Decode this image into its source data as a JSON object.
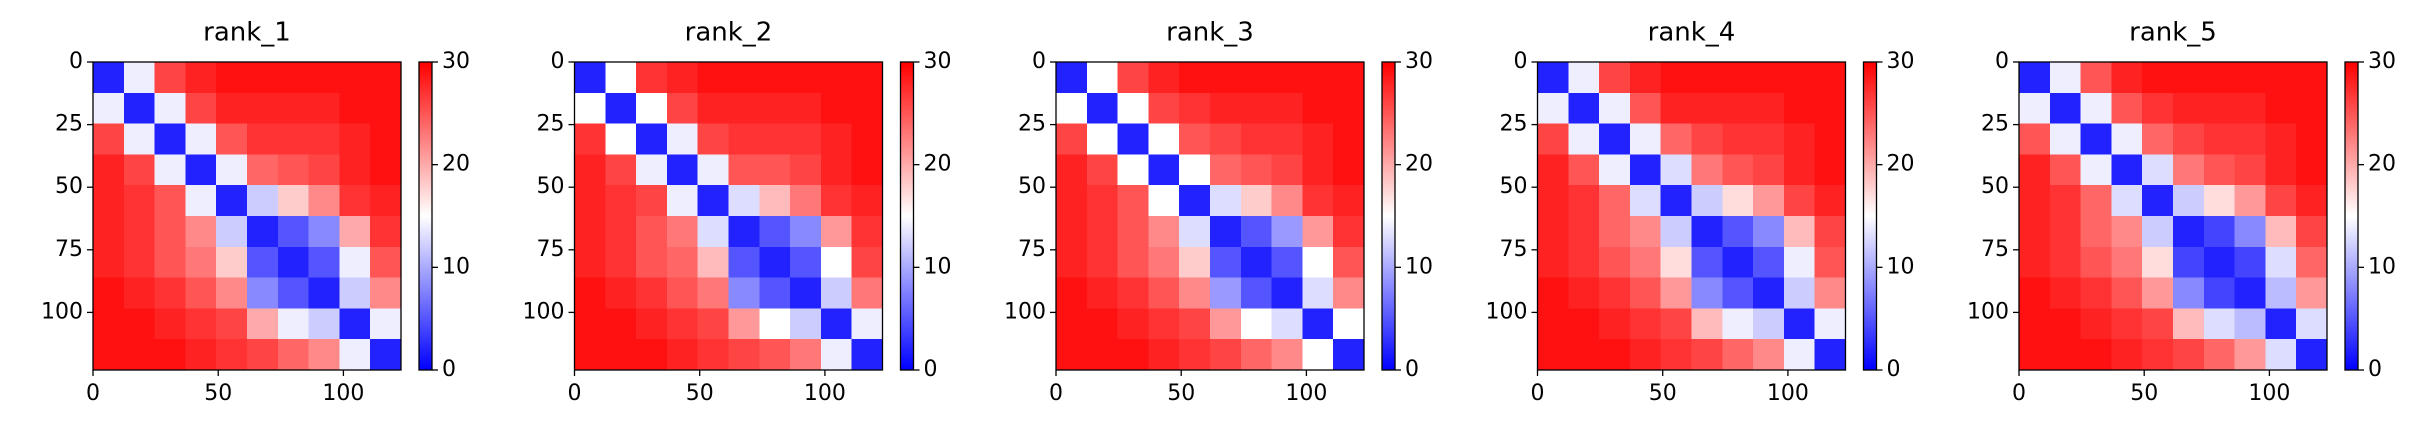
{
  "chart_data": [
    {
      "type": "heatmap",
      "title": "rank_1",
      "xlim": [
        0,
        123
      ],
      "ylim": [
        0,
        123
      ],
      "y_inverted": true,
      "xticks": [
        0,
        50,
        100
      ],
      "yticks": [
        0,
        25,
        50,
        75,
        100
      ],
      "clim": [
        0,
        30
      ],
      "cticks": [
        0,
        10,
        20,
        30
      ],
      "colormap": [
        "#0000ff",
        "#ffffff",
        "#ff0000"
      ],
      "z": [
        [
          2,
          14,
          26,
          28,
          29,
          29,
          29,
          29,
          29,
          29
        ],
        [
          14,
          2,
          14,
          26,
          28,
          28,
          28,
          28,
          29,
          29
        ],
        [
          26,
          14,
          2,
          14,
          25,
          27,
          27,
          27,
          28,
          29
        ],
        [
          28,
          26,
          14,
          2,
          14,
          24,
          25,
          26,
          28,
          29
        ],
        [
          28,
          27,
          25,
          14,
          2,
          12,
          18,
          22,
          27,
          28
        ],
        [
          28,
          27,
          25,
          22,
          12,
          2,
          5,
          8,
          20,
          27
        ],
        [
          28,
          27,
          25,
          23,
          18,
          5,
          2,
          5,
          14,
          25
        ],
        [
          29,
          28,
          27,
          25,
          22,
          8,
          5,
          2,
          12,
          22
        ],
        [
          29,
          29,
          28,
          27,
          26,
          20,
          14,
          12,
          2,
          14
        ],
        [
          29,
          29,
          29,
          28,
          27,
          26,
          24,
          22,
          14,
          2
        ]
      ]
    },
    {
      "type": "heatmap",
      "title": "rank_2",
      "xlim": [
        0,
        123
      ],
      "ylim": [
        0,
        123
      ],
      "y_inverted": true,
      "xticks": [
        0,
        50,
        100
      ],
      "yticks": [
        0,
        25,
        50,
        75,
        100
      ],
      "clim": [
        0,
        30
      ],
      "cticks": [
        0,
        10,
        20,
        30
      ],
      "colormap": [
        "#0000ff",
        "#ffffff",
        "#ff0000"
      ],
      "z": [
        [
          2,
          15,
          27,
          28,
          29,
          29,
          29,
          29,
          29,
          29
        ],
        [
          15,
          2,
          15,
          26,
          28,
          28,
          28,
          28,
          29,
          29
        ],
        [
          27,
          15,
          2,
          14,
          26,
          27,
          27,
          27,
          28,
          29
        ],
        [
          28,
          26,
          14,
          2,
          14,
          25,
          25,
          26,
          28,
          29
        ],
        [
          28,
          27,
          26,
          14,
          2,
          13,
          19,
          23,
          27,
          28
        ],
        [
          28,
          27,
          25,
          23,
          13,
          2,
          5,
          8,
          21,
          27
        ],
        [
          28,
          27,
          25,
          24,
          19,
          5,
          2,
          5,
          15,
          26
        ],
        [
          29,
          28,
          27,
          25,
          23,
          8,
          5,
          2,
          12,
          23
        ],
        [
          29,
          29,
          28,
          27,
          26,
          21,
          15,
          12,
          2,
          14
        ],
        [
          29,
          29,
          29,
          28,
          27,
          26,
          25,
          23,
          14,
          2
        ]
      ]
    },
    {
      "type": "heatmap",
      "title": "rank_3",
      "xlim": [
        0,
        123
      ],
      "ylim": [
        0,
        123
      ],
      "y_inverted": true,
      "xticks": [
        0,
        50,
        100
      ],
      "yticks": [
        0,
        25,
        50,
        75,
        100
      ],
      "clim": [
        0,
        30
      ],
      "cticks": [
        0,
        10,
        20,
        30
      ],
      "colormap": [
        "#0000ff",
        "#ffffff",
        "#ff0000"
      ],
      "z": [
        [
          2,
          15,
          26,
          28,
          29,
          29,
          29,
          29,
          29,
          29
        ],
        [
          15,
          2,
          15,
          26,
          27,
          28,
          28,
          28,
          29,
          29
        ],
        [
          26,
          15,
          2,
          15,
          25,
          26,
          27,
          27,
          28,
          29
        ],
        [
          28,
          26,
          15,
          2,
          15,
          24,
          25,
          26,
          28,
          29
        ],
        [
          28,
          27,
          25,
          15,
          2,
          13,
          18,
          22,
          27,
          28
        ],
        [
          28,
          27,
          25,
          22,
          13,
          2,
          5,
          9,
          21,
          27
        ],
        [
          28,
          27,
          25,
          23,
          18,
          5,
          2,
          5,
          15,
          25
        ],
        [
          29,
          28,
          27,
          25,
          22,
          9,
          5,
          2,
          13,
          22
        ],
        [
          29,
          29,
          28,
          27,
          26,
          21,
          15,
          13,
          2,
          15
        ],
        [
          29,
          29,
          29,
          28,
          27,
          26,
          24,
          22,
          15,
          2
        ]
      ]
    },
    {
      "type": "heatmap",
      "title": "rank_4",
      "xlim": [
        0,
        123
      ],
      "ylim": [
        0,
        123
      ],
      "y_inverted": true,
      "xticks": [
        0,
        50,
        100
      ],
      "yticks": [
        0,
        25,
        50,
        75,
        100
      ],
      "clim": [
        0,
        30
      ],
      "cticks": [
        0,
        10,
        20,
        30
      ],
      "colormap": [
        "#0000ff",
        "#ffffff",
        "#ff0000"
      ],
      "z": [
        [
          2,
          14,
          26,
          28,
          29,
          29,
          29,
          29,
          29,
          29
        ],
        [
          14,
          2,
          14,
          25,
          28,
          28,
          28,
          28,
          29,
          29
        ],
        [
          26,
          14,
          2,
          14,
          24,
          26,
          27,
          27,
          28,
          29
        ],
        [
          28,
          25,
          14,
          2,
          13,
          23,
          25,
          26,
          28,
          29
        ],
        [
          28,
          27,
          24,
          13,
          2,
          12,
          17,
          21,
          26,
          28
        ],
        [
          28,
          27,
          24,
          22,
          12,
          2,
          5,
          8,
          19,
          26
        ],
        [
          28,
          27,
          25,
          23,
          17,
          5,
          2,
          5,
          14,
          25
        ],
        [
          29,
          28,
          27,
          25,
          21,
          8,
          5,
          2,
          12,
          22
        ],
        [
          29,
          29,
          28,
          27,
          26,
          19,
          14,
          12,
          2,
          14
        ],
        [
          29,
          29,
          29,
          28,
          27,
          26,
          24,
          22,
          14,
          2
        ]
      ]
    },
    {
      "type": "heatmap",
      "title": "rank_5",
      "xlim": [
        0,
        123
      ],
      "ylim": [
        0,
        123
      ],
      "y_inverted": true,
      "xticks": [
        0,
        50,
        100
      ],
      "yticks": [
        0,
        25,
        50,
        75,
        100
      ],
      "clim": [
        0,
        30
      ],
      "cticks": [
        0,
        10,
        20,
        30
      ],
      "colormap": [
        "#0000ff",
        "#ffffff",
        "#ff0000"
      ],
      "z": [
        [
          2,
          14,
          25,
          28,
          29,
          29,
          29,
          29,
          29,
          29
        ],
        [
          14,
          2,
          14,
          25,
          27,
          28,
          28,
          28,
          29,
          29
        ],
        [
          25,
          14,
          2,
          14,
          24,
          26,
          27,
          27,
          28,
          29
        ],
        [
          28,
          25,
          14,
          2,
          13,
          23,
          25,
          26,
          28,
          29
        ],
        [
          28,
          27,
          24,
          13,
          2,
          12,
          17,
          21,
          26,
          28
        ],
        [
          28,
          27,
          24,
          22,
          12,
          2,
          4,
          8,
          19,
          26
        ],
        [
          28,
          27,
          25,
          23,
          17,
          4,
          2,
          4,
          13,
          24
        ],
        [
          29,
          28,
          27,
          25,
          21,
          8,
          4,
          2,
          11,
          21
        ],
        [
          29,
          29,
          28,
          27,
          26,
          19,
          13,
          11,
          2,
          13
        ],
        [
          29,
          29,
          29,
          28,
          27,
          26,
          24,
          21,
          13,
          2
        ]
      ]
    }
  ]
}
